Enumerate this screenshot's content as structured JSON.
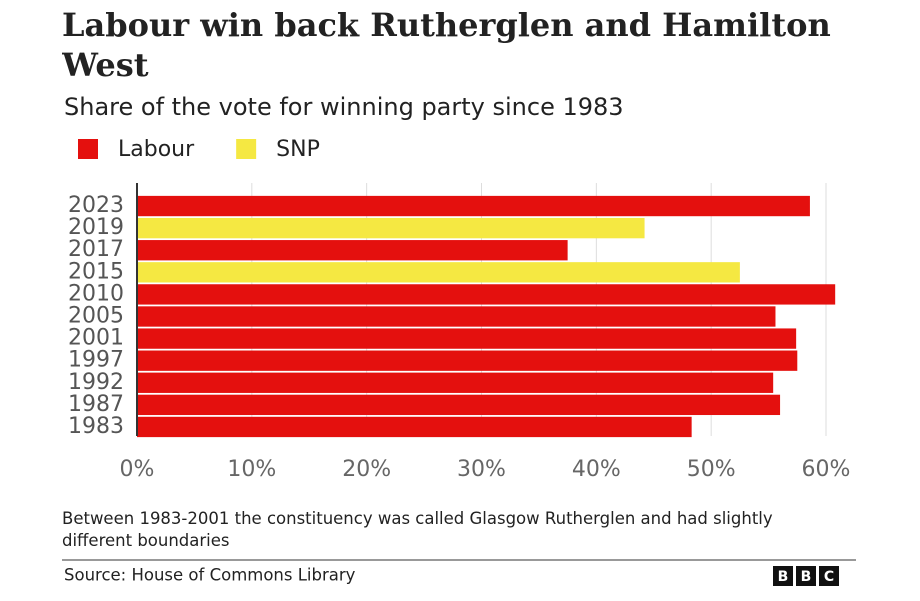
{
  "chart_data": {
    "type": "bar",
    "orientation": "horizontal",
    "title": "Labour win back Rutherglen and Hamilton West",
    "subtitle": "Share of the vote for winning party since 1983",
    "categories": [
      "2023",
      "2019",
      "2017",
      "2015",
      "2010",
      "2005",
      "2001",
      "1997",
      "1992",
      "1987",
      "1983"
    ],
    "series": [
      {
        "name": "Labour",
        "color": "#e4100e",
        "values": [
          58.6,
          null,
          37.5,
          null,
          60.8,
          55.6,
          57.4,
          57.5,
          55.4,
          56.0,
          48.3
        ]
      },
      {
        "name": "SNP",
        "color": "#f5e842",
        "values": [
          null,
          44.2,
          null,
          52.5,
          null,
          null,
          null,
          null,
          null,
          null,
          null
        ]
      }
    ],
    "xlim": [
      0,
      62
    ],
    "xticks": [
      {
        "value": 0,
        "label": "0%"
      },
      {
        "value": 10,
        "label": "10%"
      },
      {
        "value": 20,
        "label": "20%"
      },
      {
        "value": 30,
        "label": "30%"
      },
      {
        "value": 40,
        "label": "40%"
      },
      {
        "value": 50,
        "label": "50%"
      },
      {
        "value": 60,
        "label": "60%"
      }
    ],
    "grid": true,
    "note": "Between 1983-2001 the constituency was called Glasgow Rutherglen and had slightly different boundaries",
    "source": "Source: House of Commons Library",
    "logo": [
      "B",
      "B",
      "C"
    ]
  }
}
